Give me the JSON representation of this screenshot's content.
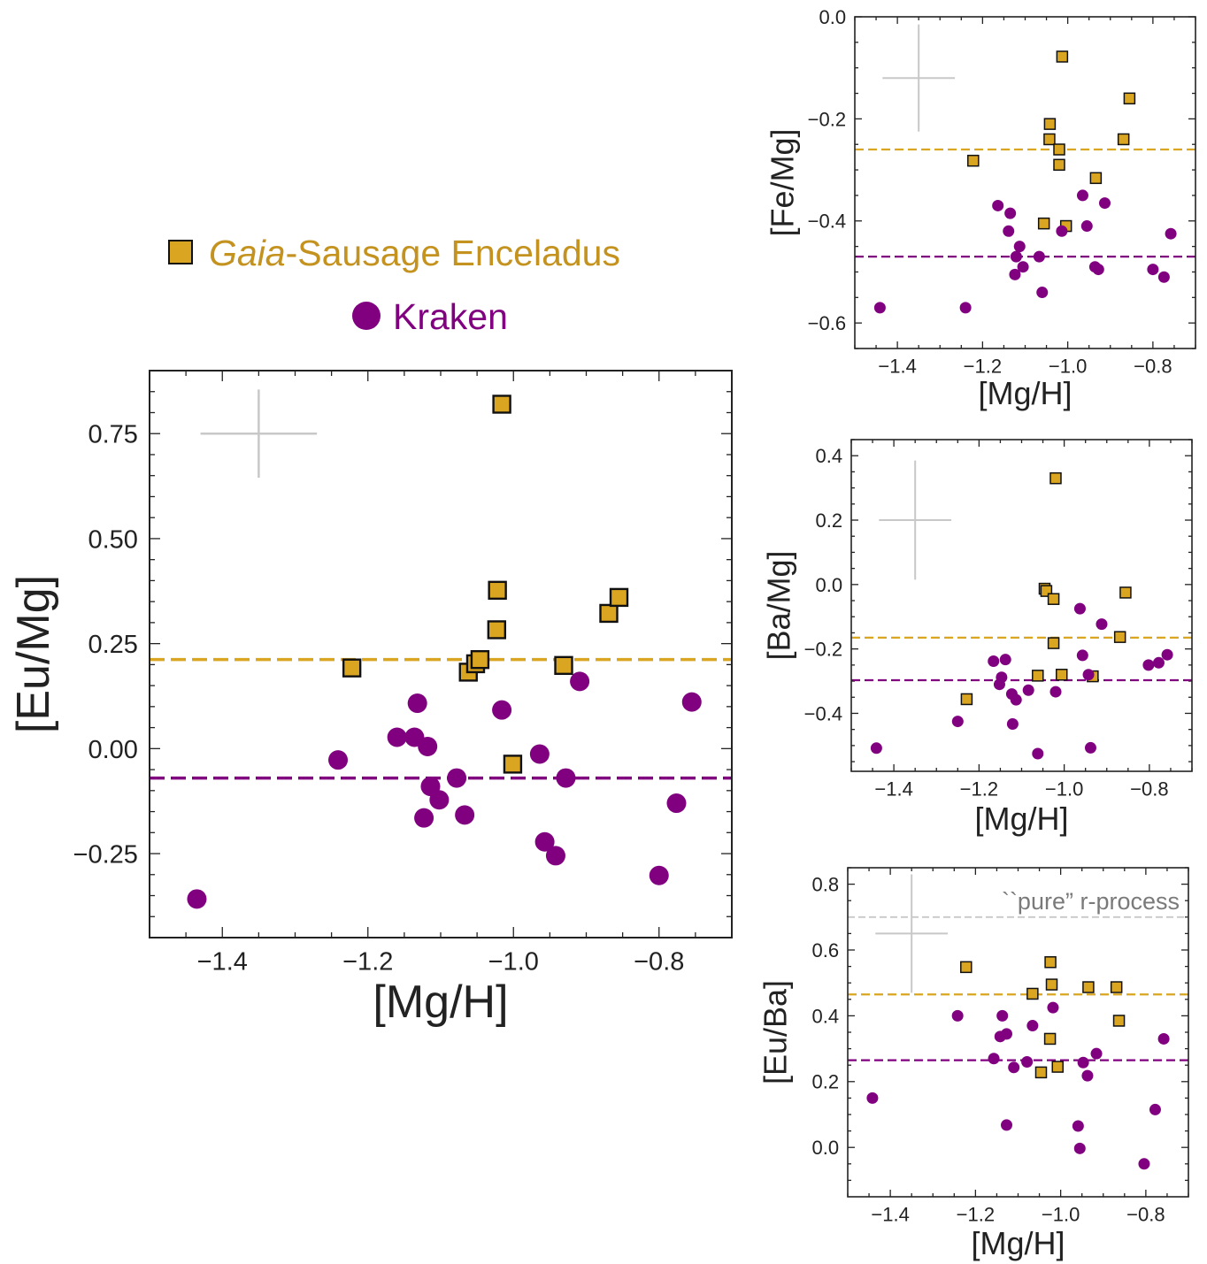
{
  "legend": {
    "gse_italic": "Gaia",
    "gse_rest": "-Sausage Enceladus",
    "kraken": "Kraken"
  },
  "colors": {
    "gse": "#daa520",
    "kraken": "#800080",
    "errorbar": "#c8c8c8",
    "pure_line": "#c8c8c8",
    "pure_text": "#7a7a7a"
  },
  "chart_data": [
    {
      "id": "main",
      "type": "scatter",
      "xlabel": "[Mg/H]",
      "ylabel": "[Eu/Mg]",
      "xlim": [
        -1.5,
        -0.7
      ],
      "ylim": [
        -0.45,
        0.9
      ],
      "xticks": [
        "−1.4",
        "−1.2",
        "−1.0",
        "−0.8"
      ],
      "xtick_values": [
        -1.4,
        -1.2,
        -1.0,
        -0.8
      ],
      "yticks": [
        "−0.25",
        "0.00",
        "0.25",
        "0.50",
        "0.75"
      ],
      "ytick_values": [
        -0.25,
        0.0,
        0.25,
        0.5,
        0.75
      ],
      "errorbar": {
        "x": -1.35,
        "y": 0.75,
        "xerr": 0.08,
        "yerr": 0.105
      },
      "hlines": [
        {
          "series": "gse",
          "y": 0.212
        },
        {
          "series": "kraken",
          "y": -0.07
        }
      ],
      "series": [
        {
          "name": "Gaia-Sausage Enceladus",
          "key": "gse",
          "x": [
            -1.016,
            -1.022,
            -1.023,
            -0.869,
            -0.855,
            -1.222,
            -1.062,
            -1.052,
            -1.046,
            -0.931,
            -1.001
          ],
          "y": [
            0.82,
            0.377,
            0.283,
            0.322,
            0.36,
            0.192,
            0.182,
            0.202,
            0.212,
            0.198,
            -0.037
          ]
        },
        {
          "name": "Kraken",
          "key": "kraken",
          "x": [
            -1.132,
            -1.16,
            -1.136,
            -1.118,
            -1.241,
            -1.114,
            -1.078,
            -1.102,
            -1.123,
            -1.067,
            -1.016,
            -0.909,
            -0.964,
            -0.928,
            -0.957,
            -0.942,
            -0.8,
            -0.776,
            -0.755,
            -1.435
          ],
          "y": [
            0.108,
            0.027,
            0.027,
            0.005,
            -0.027,
            -0.09,
            -0.07,
            -0.122,
            -0.165,
            -0.158,
            0.092,
            0.16,
            -0.013,
            -0.07,
            -0.222,
            -0.255,
            -0.302,
            -0.13,
            0.111,
            -0.358
          ]
        }
      ]
    },
    {
      "id": "femg",
      "type": "scatter",
      "xlabel": "[Mg/H]",
      "ylabel": "[Fe/Mg]",
      "xlim": [
        -1.5,
        -0.7
      ],
      "ylim": [
        -0.65,
        0.0
      ],
      "xticks": [
        "−1.4",
        "−1.2",
        "−1.0",
        "−0.8"
      ],
      "xtick_values": [
        -1.4,
        -1.2,
        -1.0,
        -0.8
      ],
      "yticks": [
        "−0.6",
        "−0.4",
        "−0.2",
        "0.0"
      ],
      "ytick_values": [
        -0.6,
        -0.4,
        -0.2,
        0.0
      ],
      "errorbar": {
        "x": -1.35,
        "y": -0.12,
        "xerr": 0.085,
        "yerr": 0.105
      },
      "hlines": [
        {
          "series": "gse",
          "y": -0.26
        },
        {
          "series": "kraken",
          "y": -0.47
        }
      ],
      "series": [
        {
          "name": "Gaia-Sausage Enceladus",
          "key": "gse",
          "x": [
            -1.013,
            -0.855,
            -1.042,
            -1.043,
            -1.02,
            -1.02,
            -0.869,
            -1.222,
            -0.934,
            -1.056,
            -1.004
          ],
          "y": [
            -0.078,
            -0.16,
            -0.21,
            -0.24,
            -0.26,
            -0.29,
            -0.24,
            -0.282,
            -0.316,
            -0.405,
            -0.41
          ]
        },
        {
          "name": "Kraken",
          "key": "kraken",
          "x": [
            -1.164,
            -1.135,
            -1.139,
            -1.121,
            -1.113,
            -1.105,
            -1.124,
            -1.067,
            -1.06,
            -1.014,
            -0.965,
            -0.955,
            -0.913,
            -0.936,
            -0.928,
            -0.8,
            -0.774,
            -0.758,
            -1.441,
            -1.24
          ],
          "y": [
            -0.37,
            -0.385,
            -0.42,
            -0.47,
            -0.45,
            -0.49,
            -0.505,
            -0.47,
            -0.54,
            -0.42,
            -0.35,
            -0.41,
            -0.365,
            -0.49,
            -0.495,
            -0.495,
            -0.51,
            -0.425,
            -0.57,
            -0.57
          ]
        }
      ]
    },
    {
      "id": "bamg",
      "type": "scatter",
      "xlabel": "[Mg/H]",
      "ylabel": "[Ba/Mg]",
      "xlim": [
        -1.5,
        -0.7
      ],
      "ylim": [
        -0.58,
        0.45
      ],
      "xticks": [
        "−1.4",
        "−1.2",
        "−1.0",
        "−0.8"
      ],
      "xtick_values": [
        -1.4,
        -1.2,
        -1.0,
        -0.8
      ],
      "yticks": [
        "−0.4",
        "−0.2",
        "0.0",
        "0.2",
        "0.4"
      ],
      "ytick_values": [
        -0.4,
        -0.2,
        0.0,
        0.2,
        0.4
      ],
      "errorbar": {
        "x": -1.35,
        "y": 0.2,
        "xerr": 0.085,
        "yerr": 0.185
      },
      "hlines": [
        {
          "series": "gse",
          "y": -0.165
        },
        {
          "series": "kraken",
          "y": -0.297
        }
      ],
      "series": [
        {
          "name": "Gaia-Sausage Enceladus",
          "key": "gse",
          "x": [
            -1.02,
            -1.046,
            -1.042,
            -1.025,
            -0.856,
            -1.025,
            -0.869,
            -1.062,
            -1.006,
            -0.933,
            -1.229
          ],
          "y": [
            0.33,
            -0.013,
            -0.02,
            -0.045,
            -0.025,
            -0.182,
            -0.163,
            -0.283,
            -0.28,
            -0.285,
            -0.356
          ]
        },
        {
          "name": "Kraken",
          "key": "kraken",
          "x": [
            -1.166,
            -1.138,
            -1.147,
            -1.152,
            -1.123,
            -1.113,
            -1.084,
            -1.121,
            -1.062,
            -1.02,
            -0.963,
            -0.957,
            -0.912,
            -0.943,
            -0.938,
            -0.802,
            -0.778,
            -0.758,
            -1.441,
            -1.25
          ],
          "y": [
            -0.238,
            -0.233,
            -0.288,
            -0.31,
            -0.34,
            -0.358,
            -0.328,
            -0.433,
            -0.525,
            -0.333,
            -0.075,
            -0.22,
            -0.123,
            -0.28,
            -0.507,
            -0.25,
            -0.243,
            -0.218,
            -0.508,
            -0.425
          ]
        }
      ]
    },
    {
      "id": "euba",
      "type": "scatter",
      "xlabel": "[Mg/H]",
      "ylabel": "[Eu/Ba]",
      "xlim": [
        -1.5,
        -0.7
      ],
      "ylim": [
        -0.15,
        0.85
      ],
      "xticks": [
        "−1.4",
        "−1.2",
        "−1.0",
        "−0.8"
      ],
      "xtick_values": [
        -1.4,
        -1.2,
        -1.0,
        -0.8
      ],
      "yticks": [
        "0.0",
        "0.2",
        "0.4",
        "0.6",
        "0.8"
      ],
      "ytick_values": [
        0.0,
        0.2,
        0.4,
        0.6,
        0.8
      ],
      "errorbar": {
        "x": -1.35,
        "y": 0.65,
        "xerr": 0.085,
        "yerr": 0.18
      },
      "annotation": {
        "text": "``pure” r-process",
        "y": 0.7
      },
      "hlines": [
        {
          "series": "gse",
          "y": 0.465
        },
        {
          "series": "kraken",
          "y": 0.265
        }
      ],
      "series": [
        {
          "name": "Gaia-Sausage Enceladus",
          "key": "gse",
          "x": [
            -1.222,
            -1.024,
            -1.066,
            -1.021,
            -0.935,
            -0.869,
            -0.863,
            -1.025,
            -1.007,
            -1.046
          ],
          "y": [
            0.548,
            0.563,
            0.467,
            0.495,
            0.487,
            0.487,
            0.385,
            0.33,
            0.245,
            0.228
          ]
        },
        {
          "name": "Kraken",
          "key": "kraken",
          "x": [
            -1.242,
            -1.137,
            -1.142,
            -1.127,
            -1.157,
            -1.11,
            -1.079,
            -1.066,
            -1.018,
            -0.959,
            -0.916,
            -0.947,
            -0.937,
            -0.955,
            -0.804,
            -0.778,
            -0.758,
            -1.127,
            -1.442
          ],
          "y": [
            0.4,
            0.4,
            0.337,
            0.345,
            0.27,
            0.243,
            0.26,
            0.37,
            0.425,
            0.065,
            0.285,
            0.258,
            0.218,
            -0.003,
            -0.05,
            0.115,
            0.33,
            0.068,
            0.15
          ]
        }
      ]
    }
  ]
}
